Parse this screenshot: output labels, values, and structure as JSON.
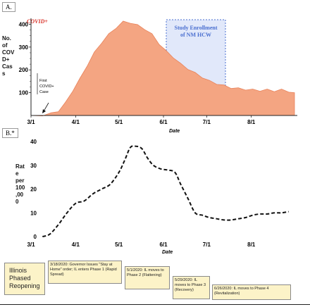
{
  "panel_a": {
    "label": "A.",
    "series_label": "COVID+",
    "ylabel_lines": [
      "No.",
      "of",
      "COV",
      "D+",
      "Cas",
      "s"
    ],
    "study_box": "Study Enrollment of NM HCW",
    "annotation": "First COVID+ Case",
    "xlabel": "Date"
  },
  "panel_b": {
    "label": "B.*",
    "ylabel_lines": [
      "Rat",
      "e",
      "per",
      "100",
      ",00",
      "0"
    ],
    "xlabel": "Date"
  },
  "phases": {
    "main": "Illinois Phased Reopening",
    "p1": "3/18/2020: Governor Issues \"Stay at Home\" order; IL enters Phase 1 (Rapid Spread)",
    "p2": "5/1/2020: IL moves to Phase 2 (Flattening)",
    "p3": "5/29/2020: IL moves to Phase 3 (Recovery)",
    "p4": "6/26/2020: IL moves to Phase 4 (Revitalization)"
  },
  "colors": {
    "area_fill": "#f4a582",
    "area_stroke": "#e8825a",
    "series_label": "#d9332a",
    "study_box": "#4a6fd0",
    "study_fill": "#c9d6f5"
  },
  "chart_data": [
    {
      "type": "area",
      "title": "",
      "series_label": "COVID+",
      "xlabel": "Date",
      "ylabel": "No. of COVID+ Cases",
      "xlim": [
        "3/1",
        "8/31"
      ],
      "ylim": [
        0,
        420
      ],
      "x_ticks": [
        "3/1",
        "4/1",
        "5/1",
        "6/1",
        "7/1",
        "8/1"
      ],
      "y_ticks": [
        100,
        200,
        300,
        400
      ],
      "annotations": [
        {
          "text": "First COVID+ Case",
          "x": "3/9"
        },
        {
          "text": "Study Enrollment of NM HCW",
          "x_range": [
            "5/27",
            "6/26"
          ]
        }
      ],
      "x": [
        "3/1",
        "3/9",
        "3/15",
        "3/20",
        "3/25",
        "3/30",
        "4/4",
        "4/9",
        "4/14",
        "4/19",
        "4/24",
        "4/29",
        "5/4",
        "5/9",
        "5/14",
        "5/19",
        "5/24",
        "5/29",
        "6/3",
        "6/8",
        "6/13",
        "6/18",
        "6/23",
        "6/28",
        "7/3",
        "7/8",
        "7/13",
        "7/18",
        "7/23",
        "7/28",
        "8/2",
        "8/7",
        "8/12",
        "8/17",
        "8/22",
        "8/27",
        "8/31"
      ],
      "values": [
        0,
        2,
        8,
        20,
        55,
        110,
        160,
        220,
        275,
        320,
        355,
        385,
        410,
        408,
        395,
        380,
        355,
        315,
        280,
        255,
        225,
        205,
        185,
        168,
        150,
        140,
        130,
        122,
        118,
        115,
        112,
        110,
        112,
        108,
        112,
        106,
        100
      ]
    },
    {
      "type": "line",
      "title": "",
      "xlabel": "Date",
      "ylabel": "Rate per 100,000",
      "xlim": [
        "3/1",
        "8/31"
      ],
      "ylim": [
        0,
        40
      ],
      "x_ticks": [
        "3/1",
        "4/1",
        "5/1",
        "6/1",
        "7/1",
        "8/1"
      ],
      "y_ticks": [
        0,
        10,
        20,
        30,
        40
      ],
      "x": [
        "3/9",
        "3/14",
        "3/20",
        "3/26",
        "4/1",
        "4/7",
        "4/13",
        "4/19",
        "4/25",
        "5/1",
        "5/5",
        "5/9",
        "5/13",
        "5/17",
        "5/21",
        "5/25",
        "5/30",
        "6/4",
        "6/9",
        "6/13",
        "6/18",
        "6/23",
        "6/28",
        "7/3",
        "7/8",
        "7/13",
        "7/18",
        "7/23",
        "7/28",
        "8/2",
        "8/7",
        "8/12",
        "8/17",
        "8/22",
        "8/27"
      ],
      "values": [
        0,
        1,
        5,
        10,
        14,
        15,
        18,
        20,
        22,
        27,
        32,
        37.5,
        38,
        37,
        33,
        30,
        28.5,
        28,
        27,
        22,
        16,
        10,
        9,
        8,
        7.5,
        7,
        7,
        7.5,
        8,
        9,
        9.5,
        9.5,
        10,
        10,
        10.5
      ]
    }
  ]
}
